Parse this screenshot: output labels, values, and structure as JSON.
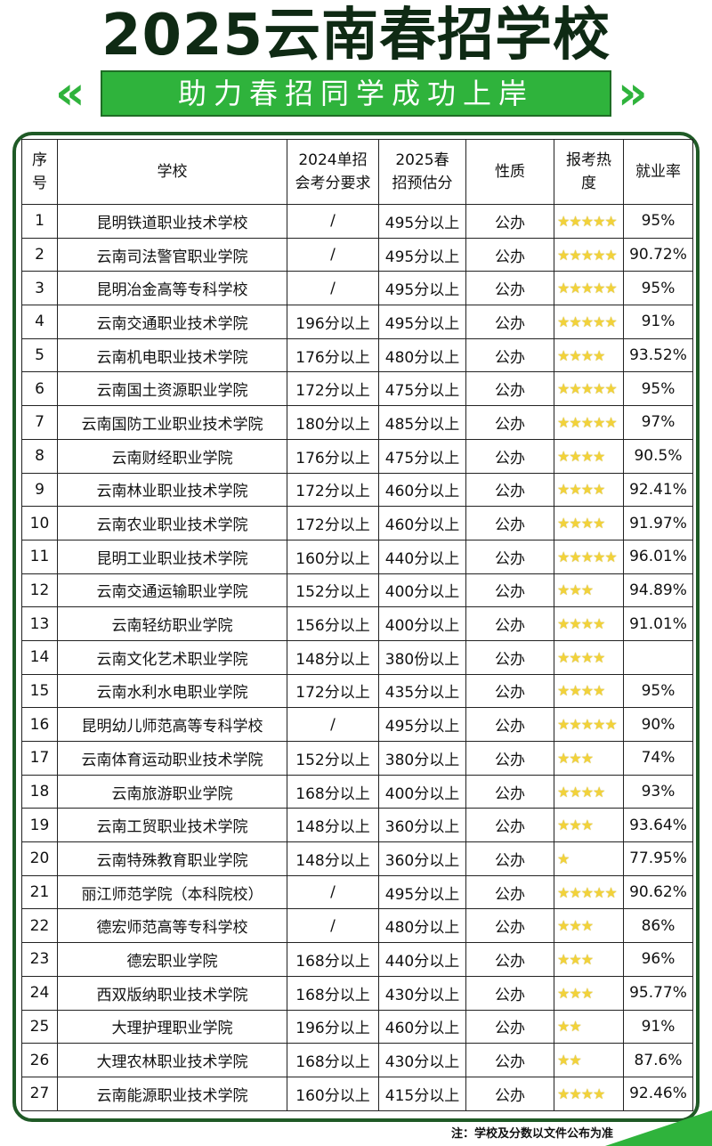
{
  "title": "2025云南春招学校",
  "subtitle": "助力春招同学成功上岸",
  "colors": {
    "accent": "#2fb33c",
    "dark": "#0f2a14",
    "star": "#f2d23a"
  },
  "table": {
    "headers": [
      "序号",
      "学校",
      "2024单招会考分要求",
      "2025春招预估分",
      "性质",
      "报考热度",
      "就业率"
    ],
    "rows": [
      {
        "no": "1",
        "school": "昆明铁道职业技术学校",
        "req2024": "/",
        "est2025": "495分以上",
        "type": "公办",
        "heat": 5,
        "employ": "95%"
      },
      {
        "no": "2",
        "school": "云南司法警官职业学院",
        "req2024": "/",
        "est2025": "495分以上",
        "type": "公办",
        "heat": 5,
        "employ": "90.72%"
      },
      {
        "no": "3",
        "school": "昆明冶金高等专科学校",
        "req2024": "/",
        "est2025": "495分以上",
        "type": "公办",
        "heat": 5,
        "employ": "95%"
      },
      {
        "no": "4",
        "school": "云南交通职业技术学院",
        "req2024": "196分以上",
        "est2025": "495分以上",
        "type": "公办",
        "heat": 5,
        "employ": "91%"
      },
      {
        "no": "5",
        "school": "云南机电职业技术学院",
        "req2024": "176分以上",
        "est2025": "480分以上",
        "type": "公办",
        "heat": 4,
        "employ": "93.52%"
      },
      {
        "no": "6",
        "school": "云南国土资源职业学院",
        "req2024": "172分以上",
        "est2025": "475分以上",
        "type": "公办",
        "heat": 5,
        "employ": "95%"
      },
      {
        "no": "7",
        "school": "云南国防工业职业技术学院",
        "req2024": "180分以上",
        "est2025": "485分以上",
        "type": "公办",
        "heat": 5,
        "employ": "97%"
      },
      {
        "no": "8",
        "school": "云南财经职业学院",
        "req2024": "176分以上",
        "est2025": "475分以上",
        "type": "公办",
        "heat": 4,
        "employ": "90.5%"
      },
      {
        "no": "9",
        "school": "云南林业职业技术学院",
        "req2024": "172分以上",
        "est2025": "460分以上",
        "type": "公办",
        "heat": 4,
        "employ": "92.41%"
      },
      {
        "no": "10",
        "school": "云南农业职业技术学院",
        "req2024": "172分以上",
        "est2025": "460分以上",
        "type": "公办",
        "heat": 4,
        "employ": "91.97%"
      },
      {
        "no": "11",
        "school": "昆明工业职业技术学院",
        "req2024": "160分以上",
        "est2025": "440分以上",
        "type": "公办",
        "heat": 5,
        "employ": "96.01%"
      },
      {
        "no": "12",
        "school": "云南交通运输职业学院",
        "req2024": "152分以上",
        "est2025": "400分以上",
        "type": "公办",
        "heat": 3,
        "employ": "94.89%"
      },
      {
        "no": "13",
        "school": "云南轻纺职业学院",
        "req2024": "156分以上",
        "est2025": "400分以上",
        "type": "公办",
        "heat": 4,
        "employ": "91.01%"
      },
      {
        "no": "14",
        "school": "云南文化艺术职业学院",
        "req2024": "148分以上",
        "est2025": "380份以上",
        "type": "公办",
        "heat": 4,
        "employ": ""
      },
      {
        "no": "15",
        "school": "云南水利水电职业学院",
        "req2024": "172分以上",
        "est2025": "435分以上",
        "type": "公办",
        "heat": 4,
        "employ": "95%"
      },
      {
        "no": "16",
        "school": "昆明幼儿师范高等专科学校",
        "req2024": "/",
        "est2025": "495分以上",
        "type": "公办",
        "heat": 5,
        "employ": "90%"
      },
      {
        "no": "17",
        "school": "云南体育运动职业技术学院",
        "req2024": "152分以上",
        "est2025": "380分以上",
        "type": "公办",
        "heat": 3,
        "employ": "74%"
      },
      {
        "no": "18",
        "school": "云南旅游职业学院",
        "req2024": "168分以上",
        "est2025": "400分以上",
        "type": "公办",
        "heat": 4,
        "employ": "93%"
      },
      {
        "no": "19",
        "school": "云南工贸职业技术学院",
        "req2024": "148分以上",
        "est2025": "360分以上",
        "type": "公办",
        "heat": 3,
        "employ": "93.64%"
      },
      {
        "no": "20",
        "school": "云南特殊教育职业学院",
        "req2024": "148分以上",
        "est2025": "360分以上",
        "type": "公办",
        "heat": 1,
        "employ": "77.95%"
      },
      {
        "no": "21",
        "school": "丽江师范学院（本科院校）",
        "req2024": "/",
        "est2025": "495分以上",
        "type": "公办",
        "heat": 5,
        "employ": "90.62%"
      },
      {
        "no": "22",
        "school": "德宏师范高等专科学校",
        "req2024": "/",
        "est2025": "480分以上",
        "type": "公办",
        "heat": 3,
        "employ": "86%"
      },
      {
        "no": "23",
        "school": "德宏职业学院",
        "req2024": "168分以上",
        "est2025": "440分以上",
        "type": "公办",
        "heat": 3,
        "employ": "96%"
      },
      {
        "no": "24",
        "school": "西双版纳职业技术学院",
        "req2024": "168分以上",
        "est2025": "430分以上",
        "type": "公办",
        "heat": 3,
        "employ": "95.77%"
      },
      {
        "no": "25",
        "school": "大理护理职业学院",
        "req2024": "196分以上",
        "est2025": "460分以上",
        "type": "公办",
        "heat": 2,
        "employ": "91%"
      },
      {
        "no": "26",
        "school": "大理农林职业技术学院",
        "req2024": "168分以上",
        "est2025": "430分以上",
        "type": "公办",
        "heat": 2,
        "employ": "87.6%"
      },
      {
        "no": "27",
        "school": "云南能源职业技术学院",
        "req2024": "160分以上",
        "est2025": "415分以上",
        "type": "公办",
        "heat": 4,
        "employ": "92.46%"
      }
    ]
  },
  "note": "注：学校及分数以文件公布为准"
}
